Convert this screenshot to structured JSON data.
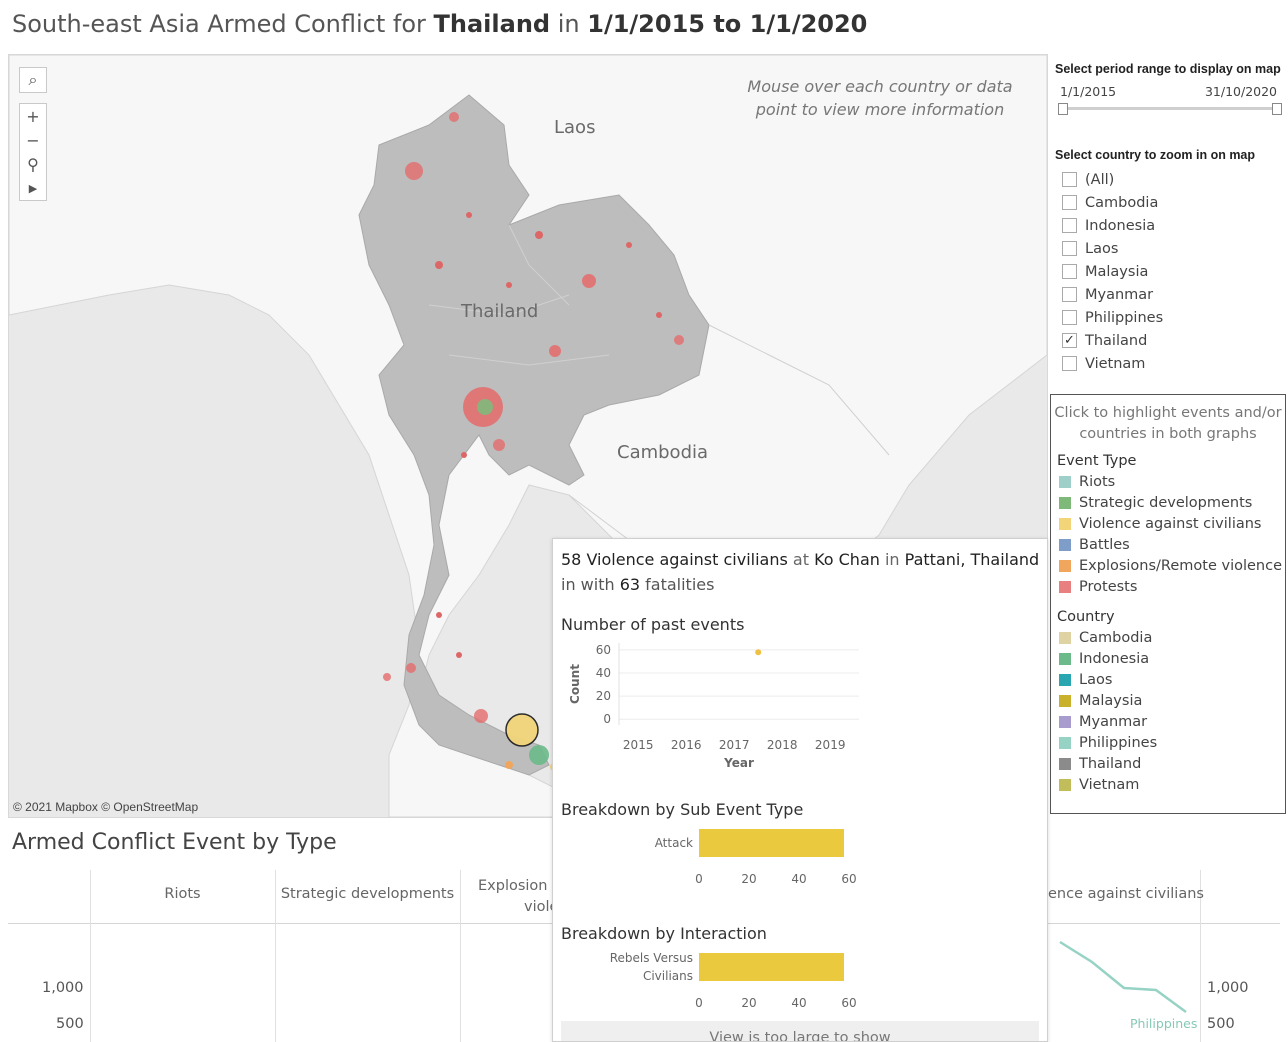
{
  "title": {
    "prefix": "South-east Asia Armed Conflict for ",
    "country": "Thailand",
    "mid": " in ",
    "range": "1/1/2015 to 1/1/2020"
  },
  "map": {
    "hint": "Mouse over each country or data point to view more information",
    "attribution": "© 2021 Mapbox © OpenStreetMap",
    "labels": {
      "laos": "Laos",
      "thailand": "Thailand",
      "cambodia": "Cambodia"
    },
    "controls": {
      "search": "⌕",
      "zoom_in": "+",
      "zoom_out": "−",
      "pin": "⚲",
      "play": "▶"
    }
  },
  "period": {
    "heading": "Select period range to display on map",
    "start": "1/1/2015",
    "end": "31/10/2020"
  },
  "country_filter": {
    "heading": "Select country to zoom in on map",
    "options": [
      {
        "label": "(All)",
        "checked": false
      },
      {
        "label": "Cambodia",
        "checked": false
      },
      {
        "label": "Indonesia",
        "checked": false
      },
      {
        "label": "Laos",
        "checked": false
      },
      {
        "label": "Malaysia",
        "checked": false
      },
      {
        "label": "Myanmar",
        "checked": false
      },
      {
        "label": "Philippines",
        "checked": false
      },
      {
        "label": "Thailand",
        "checked": true
      },
      {
        "label": "Vietnam",
        "checked": false
      }
    ]
  },
  "legend": {
    "hint": "Click to highlight events and/or countries in both graphs",
    "event_type_heading": "Event Type",
    "event_types": [
      {
        "label": "Riots",
        "color": "#9fcfc9"
      },
      {
        "label": "Strategic developments",
        "color": "#7fb97a"
      },
      {
        "label": "Violence against civilians",
        "color": "#f2d479"
      },
      {
        "label": "Battles",
        "color": "#7f9dc9"
      },
      {
        "label": "Explosions/Remote violence",
        "color": "#f0a75d"
      },
      {
        "label": "Protests",
        "color": "#e88080"
      }
    ],
    "country_heading": "Country",
    "countries": [
      {
        "label": "Cambodia",
        "color": "#dfd3a3"
      },
      {
        "label": "Indonesia",
        "color": "#6cb989"
      },
      {
        "label": "Laos",
        "color": "#2aa6b1"
      },
      {
        "label": "Malaysia",
        "color": "#c9b12c"
      },
      {
        "label": "Myanmar",
        "color": "#a79ccd"
      },
      {
        "label": "Philippines",
        "color": "#96d3c4"
      },
      {
        "label": "Thailand",
        "color": "#8b8b8b"
      },
      {
        "label": "Vietnam",
        "color": "#c2bd5b"
      }
    ]
  },
  "bottom": {
    "title": "Armed Conflict Event by Type",
    "columns": [
      "Riots",
      "Strategic developments",
      "Explosions/Remote violence",
      "Violence against civilians"
    ],
    "col_visible": {
      "explosions_1": "Explosion",
      "explosions_2": "viole",
      "violence": "ence against civilians"
    },
    "y_ticks": [
      "1,000",
      "500"
    ],
    "line_label": "Philippines"
  },
  "tooltip": {
    "headline": {
      "count": "58",
      "type": "Violence against civilians",
      "at": " at ",
      "location": "Ko Chan",
      "in": " in ",
      "province": "Pattani, Thailand"
    },
    "line2": {
      "prefix": "in  with ",
      "fatalities": "63",
      "suffix": " fatalities"
    },
    "past_events_title": "Number of past events",
    "sub_event_title": "Breakdown by Sub Event Type",
    "interaction_title": "Breakdown by Interaction",
    "footer": "View is too large to show"
  },
  "chart_data": [
    {
      "type": "scatter",
      "title": "Number of past events",
      "xlabel": "Year",
      "ylabel": "Count",
      "x_ticks": [
        2015,
        2016,
        2017,
        2018,
        2019
      ],
      "y_ticks": [
        0,
        20,
        40,
        60
      ],
      "xlim": [
        2014.6,
        2019.6
      ],
      "ylim": [
        -5,
        66
      ],
      "series": [
        {
          "values": [
            [
              2017.5,
              58
            ]
          ],
          "color": "#f0c040"
        }
      ]
    },
    {
      "type": "bar",
      "title": "Breakdown by Sub Event Type",
      "categories": [
        "Attack"
      ],
      "values": [
        58
      ],
      "x_ticks": [
        0,
        20,
        40,
        60
      ],
      "xlim": [
        0,
        60
      ],
      "color": "#ebc93f"
    },
    {
      "type": "bar",
      "title": "Breakdown by Interaction",
      "categories": [
        "Rebels Versus Civilians"
      ],
      "category_lines": [
        "Rebels Versus",
        "Civilians"
      ],
      "values": [
        58
      ],
      "x_ticks": [
        0,
        20,
        40,
        60
      ],
      "xlim": [
        0,
        60
      ],
      "color": "#ebc93f"
    }
  ]
}
